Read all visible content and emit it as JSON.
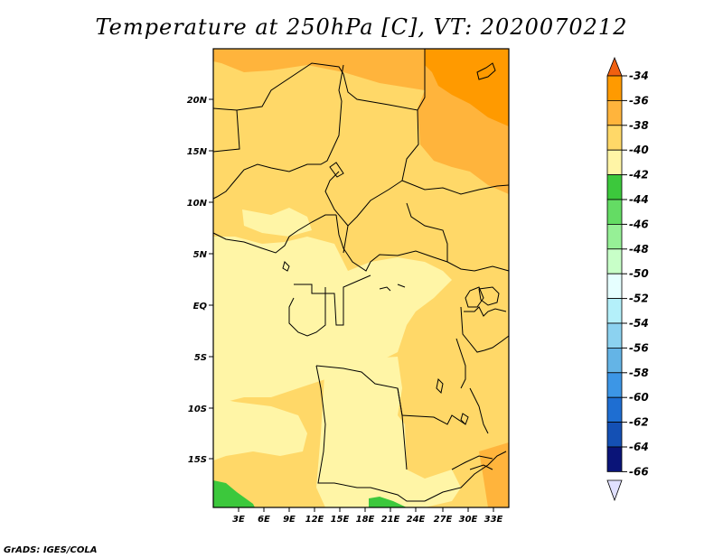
{
  "title": "Temperature at 250hPa [C], VT: 2020070212",
  "credit": "GrADS: IGES/COLA",
  "lat_labels": [
    "20N",
    "15N",
    "10N",
    "5N",
    "EQ",
    "5S",
    "10S",
    "15S"
  ],
  "lon_labels": [
    "3E",
    "6E",
    "9E",
    "12E",
    "15E",
    "18E",
    "21E",
    "24E",
    "27E",
    "30E",
    "33E"
  ],
  "colorbar": {
    "labels": [
      "-34",
      "-36",
      "-38",
      "-40",
      "-42",
      "-44",
      "-46",
      "-48",
      "-50",
      "-52",
      "-54",
      "-56",
      "-58",
      "-60",
      "-62",
      "-64",
      "-66"
    ],
    "colors": [
      "#f06010",
      "#ff9a00",
      "#ffb43c",
      "#ffd868",
      "#fff5a6",
      "#3cc83c",
      "#64dc64",
      "#96f096",
      "#c8ffc8",
      "#e6ffff",
      "#b4f0fa",
      "#8cd2f0",
      "#64b4e6",
      "#3c96e6",
      "#1e6ed2",
      "#1450b4",
      "#0a1478"
    ],
    "lower_arrow_color": "#e0e0ff",
    "upper_arrow_color": "#f06010"
  },
  "field_colors": {
    "c36": "#ff9a00",
    "c38": "#ffb43c",
    "c40": "#ffd868",
    "c42": "#fff5a6",
    "c44": "#3cc83c"
  }
}
